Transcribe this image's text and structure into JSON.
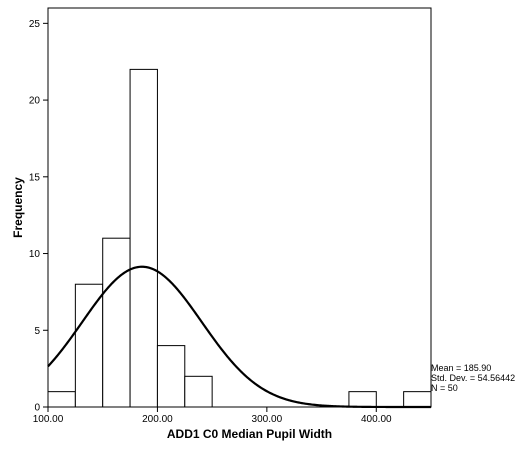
{
  "chart_data": {
    "type": "bar",
    "title": "",
    "xlabel": "ADD1 C0 Median Pupil Width",
    "ylabel": "Frequency",
    "xlim": [
      100,
      450
    ],
    "ylim": [
      0,
      26
    ],
    "x_ticks": [
      "100.00",
      "200.00",
      "300.00",
      "400.00"
    ],
    "y_ticks": [
      "0",
      "5",
      "10",
      "15",
      "20",
      "25"
    ],
    "bins": [
      {
        "from": 100,
        "to": 125,
        "count": 1
      },
      {
        "from": 125,
        "to": 150,
        "count": 8
      },
      {
        "from": 150,
        "to": 175,
        "count": 11
      },
      {
        "from": 175,
        "to": 200,
        "count": 22
      },
      {
        "from": 200,
        "to": 225,
        "count": 4
      },
      {
        "from": 225,
        "to": 250,
        "count": 2
      },
      {
        "from": 375,
        "to": 400,
        "count": 1
      },
      {
        "from": 425,
        "to": 450,
        "count": 1
      }
    ],
    "normal_curve": {
      "mean": 185.9,
      "std_dev": 54.56442,
      "n": 50,
      "bin_width": 25
    },
    "bar_fill": "#ffffff",
    "bar_stroke": "#000000",
    "curve_color": "#000000",
    "grid": false
  },
  "stats": {
    "mean": "Mean = 185.90",
    "std_dev": "Std. Dev. = 54.56442",
    "n": "N = 50"
  }
}
